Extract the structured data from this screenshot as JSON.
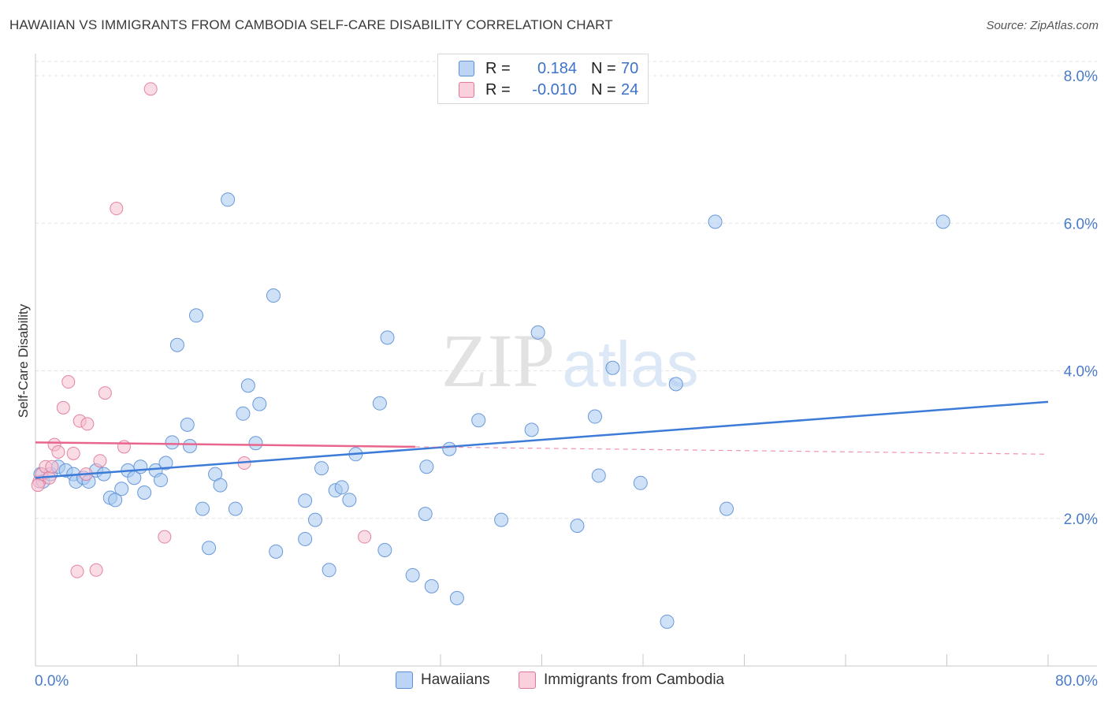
{
  "header": {
    "title": "HAWAIIAN VS IMMIGRANTS FROM CAMBODIA SELF-CARE DISABILITY CORRELATION CHART",
    "source": "Source: ZipAtlas.com"
  },
  "watermark": {
    "zip": "ZIP",
    "atlas": "atlas"
  },
  "legend": {
    "r_label": "R =",
    "n_label": "N =",
    "rows": [
      {
        "r": "0.184",
        "n": "70",
        "color": "#a8c8f0",
        "border": "#5b8fd6"
      },
      {
        "r": "-0.010",
        "n": "24",
        "color": "#f6c0d0",
        "border": "#e07898"
      }
    ]
  },
  "chart_data": {
    "type": "scatter",
    "title": "HAWAIIAN VS IMMIGRANTS FROM CAMBODIA SELF-CARE DISABILITY CORRELATION CHART",
    "xlabel": "",
    "ylabel": "Self-Care Disability",
    "xlim": [
      0,
      80
    ],
    "ylim": [
      0,
      8.3
    ],
    "x_ticks": [
      "0.0%",
      "80.0%"
    ],
    "y_ticks": [
      {
        "value": 2,
        "label": "2.0%"
      },
      {
        "value": 4,
        "label": "4.0%"
      },
      {
        "value": 6,
        "label": "6.0%"
      },
      {
        "value": 8,
        "label": "8.0%"
      }
    ],
    "grid": "horizontal dashed",
    "series": [
      {
        "name": "Hawaiians",
        "color": "#a8c8f0",
        "edge": "#5b8fd6",
        "trend": {
          "x": [
            0,
            80
          ],
          "y": [
            2.55,
            3.58
          ],
          "color": "#3d7bd9",
          "style": "solid"
        },
        "points": [
          [
            0.4,
            2.6
          ],
          [
            0.6,
            2.5
          ],
          [
            1.2,
            2.6
          ],
          [
            1.8,
            2.7
          ],
          [
            2.4,
            2.65
          ],
          [
            3.0,
            2.6
          ],
          [
            3.2,
            2.5
          ],
          [
            3.8,
            2.55
          ],
          [
            4.2,
            2.5
          ],
          [
            4.8,
            2.65
          ],
          [
            5.4,
            2.6
          ],
          [
            5.9,
            2.28
          ],
          [
            6.3,
            2.25
          ],
          [
            6.8,
            2.4
          ],
          [
            7.3,
            2.65
          ],
          [
            7.8,
            2.55
          ],
          [
            8.3,
            2.7
          ],
          [
            8.6,
            2.35
          ],
          [
            9.5,
            2.65
          ],
          [
            9.9,
            2.52
          ],
          [
            10.3,
            2.75
          ],
          [
            10.8,
            3.03
          ],
          [
            11.2,
            4.35
          ],
          [
            12.0,
            3.27
          ],
          [
            12.2,
            2.98
          ],
          [
            12.7,
            4.75
          ],
          [
            13.2,
            2.13
          ],
          [
            13.7,
            1.6
          ],
          [
            14.2,
            2.6
          ],
          [
            14.6,
            2.45
          ],
          [
            15.2,
            6.32
          ],
          [
            15.8,
            2.13
          ],
          [
            16.4,
            3.42
          ],
          [
            16.8,
            3.8
          ],
          [
            17.4,
            3.02
          ],
          [
            17.7,
            3.55
          ],
          [
            18.8,
            5.02
          ],
          [
            19.0,
            1.55
          ],
          [
            21.3,
            1.72
          ],
          [
            21.3,
            2.24
          ],
          [
            22.1,
            1.98
          ],
          [
            22.6,
            2.68
          ],
          [
            23.2,
            1.3
          ],
          [
            23.7,
            2.38
          ],
          [
            24.2,
            2.42
          ],
          [
            24.8,
            2.25
          ],
          [
            25.3,
            2.87
          ],
          [
            27.2,
            3.56
          ],
          [
            27.8,
            4.45
          ],
          [
            27.6,
            1.57
          ],
          [
            29.8,
            1.23
          ],
          [
            30.8,
            2.06
          ],
          [
            30.9,
            2.7
          ],
          [
            31.3,
            1.08
          ],
          [
            32.7,
            2.94
          ],
          [
            33.3,
            0.92
          ],
          [
            35.0,
            3.33
          ],
          [
            36.8,
            1.98
          ],
          [
            39.2,
            3.2
          ],
          [
            39.7,
            4.52
          ],
          [
            42.8,
            1.9
          ],
          [
            44.2,
            3.38
          ],
          [
            44.5,
            2.58
          ],
          [
            45.6,
            4.04
          ],
          [
            47.8,
            2.48
          ],
          [
            49.9,
            0.6
          ],
          [
            50.6,
            3.82
          ],
          [
            53.7,
            6.02
          ],
          [
            54.6,
            2.13
          ],
          [
            71.7,
            6.02
          ]
        ]
      },
      {
        "name": "Immigrants from Cambodia",
        "color": "#f6c0d0",
        "edge": "#e07898",
        "trend": {
          "x": [
            0,
            80
          ],
          "y": [
            3.03,
            2.87
          ],
          "solid_until": 30,
          "color": "#e8668e",
          "style": "solid-then-dashed"
        },
        "points": [
          [
            0.3,
            2.5
          ],
          [
            0.5,
            2.6
          ],
          [
            0.8,
            2.7
          ],
          [
            1.1,
            2.55
          ],
          [
            1.5,
            3.0
          ],
          [
            1.8,
            2.9
          ],
          [
            2.2,
            3.5
          ],
          [
            2.6,
            3.85
          ],
          [
            3.0,
            2.88
          ],
          [
            3.3,
            1.28
          ],
          [
            3.5,
            3.32
          ],
          [
            4.0,
            2.6
          ],
          [
            4.1,
            3.28
          ],
          [
            4.8,
            1.3
          ],
          [
            5.1,
            2.78
          ],
          [
            5.5,
            3.7
          ],
          [
            6.4,
            6.2
          ],
          [
            7.0,
            2.97
          ],
          [
            9.1,
            7.82
          ],
          [
            10.2,
            1.75
          ],
          [
            16.5,
            2.75
          ],
          [
            26.0,
            1.75
          ],
          [
            0.2,
            2.45
          ],
          [
            1.3,
            2.7
          ]
        ]
      }
    ]
  },
  "bottom_legend": {
    "items": [
      {
        "label": "Hawaiians",
        "color": "#a8c8f0",
        "border": "#5b8fd6"
      },
      {
        "label": "Immigrants from Cambodia",
        "color": "#f6c0d0",
        "border": "#e07898"
      }
    ]
  }
}
